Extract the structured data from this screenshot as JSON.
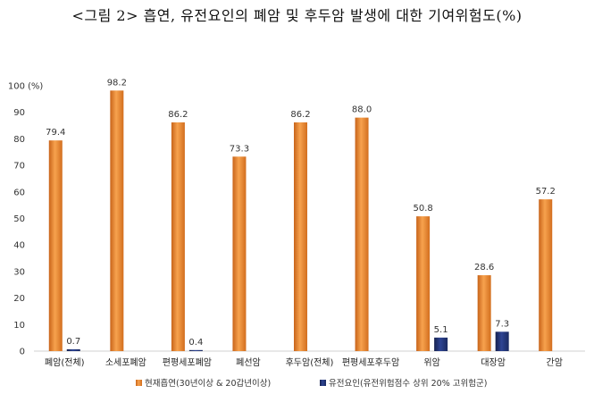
{
  "title": "<그림 2> 흡연, 유전요인의 폐암 및 후두암 발생에 대한 기여위험도(%)",
  "chart_data": {
    "type": "bar",
    "title": "<그림 2> 흡연, 유전요인의 폐암 및 후두암 발생에 대한 기여위험도(%)",
    "ylabel": "(%)",
    "ylim": [
      0,
      100
    ],
    "yticks": [
      0,
      10,
      20,
      30,
      40,
      50,
      60,
      70,
      80,
      90,
      100
    ],
    "grid": false,
    "legend_position": "bottom",
    "categories": [
      "폐암(전체)",
      "소세포폐암",
      "편평세포폐암",
      "폐선암",
      "후두암(전체)",
      "편평세포후두암",
      "위암",
      "대장암",
      "간암"
    ],
    "series": [
      {
        "name": "현재흡연(30년이상  & 20갑년이상)",
        "color": "#E8812A",
        "values": [
          79.4,
          98.2,
          86.2,
          73.3,
          86.2,
          88.0,
          50.8,
          28.6,
          57.2
        ],
        "labels": [
          "79.4",
          "98.2",
          "86.2",
          "73.3",
          "86.2",
          "88.0",
          "50.8",
          "28.6",
          "57.2"
        ]
      },
      {
        "name": "유전요인(유전위험점수 상위 20% 고위험군)",
        "color": "#1F2F6B",
        "values": [
          0.7,
          null,
          0.4,
          null,
          null,
          null,
          5.1,
          7.3,
          null
        ],
        "labels": [
          "0.7",
          null,
          "0.4",
          null,
          null,
          null,
          "5.1",
          "7.3",
          null
        ]
      }
    ]
  }
}
